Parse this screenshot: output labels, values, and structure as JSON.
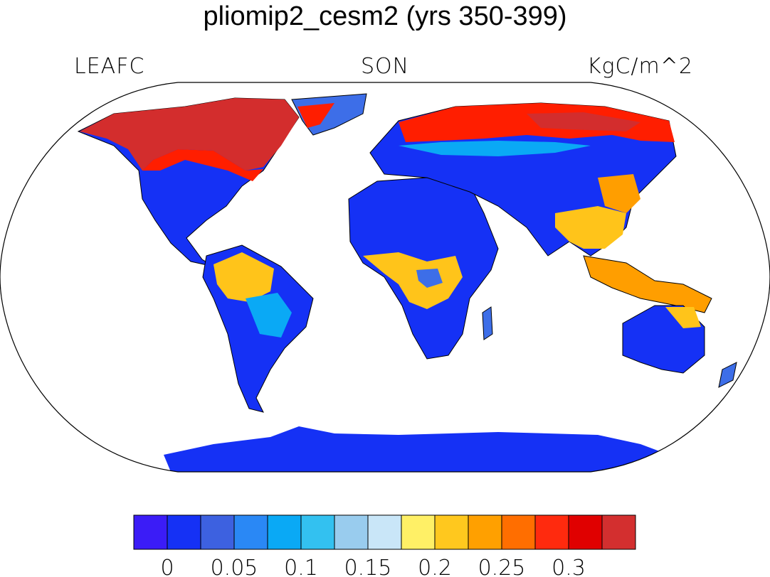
{
  "title": "pliomip2_cesm2 (yrs 350-399)",
  "left_label": "LEAFC",
  "center_label": "SON",
  "right_label": "KgC/m^2",
  "map": {
    "projection": "Robinson",
    "land_colors": {
      "boreal_high": "#d32d2d",
      "boreal_mid": "#ff1e00",
      "orange": "#ff9e00",
      "yellow": "#ffc41a",
      "light_yellow": "#ffee55",
      "low": "#1531f5",
      "mid_blue": "#3d6ee8",
      "sky": "#0aa9f5"
    },
    "coastline_color": "#000000"
  },
  "colorbar": {
    "colors": [
      "#3b1cf7",
      "#1531f5",
      "#3d61e0",
      "#2a88f5",
      "#0aa9f5",
      "#33c1f0",
      "#99ccee",
      "#c9e6f8",
      "#fff066",
      "#ffc81e",
      "#ffa000",
      "#ff6e00",
      "#ff2a0e",
      "#e00000",
      "#d32f2f"
    ],
    "tick_labels": [
      "0",
      "0.05",
      "0.1",
      "0.15",
      "0.2",
      "0.25",
      "0.3"
    ]
  }
}
